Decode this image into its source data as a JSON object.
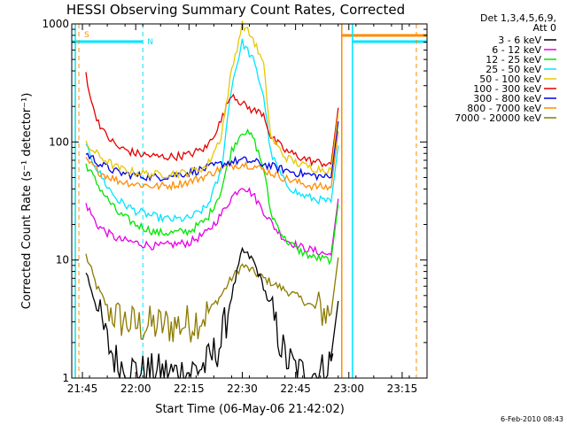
{
  "chart_data": {
    "type": "line",
    "title": "HESSI Observing Summary Count Rates, Corrected",
    "xlabel": "Start Time (06-May-06 21:42:02)",
    "ylabel": "Corrected Count Rate (s⁻¹ detector⁻¹)",
    "yscale": "log",
    "ylim": [
      1,
      1000
    ],
    "xlim": [
      "21:42",
      "23:22"
    ],
    "x_ticks": [
      "21:45",
      "22:00",
      "22:15",
      "22:30",
      "22:45",
      "23:00",
      "23:15"
    ],
    "y_ticks": [
      "1",
      "10",
      "100",
      "1000"
    ],
    "legend_header": [
      "Det 1,3,4,5,6,9,",
      "Att 0"
    ],
    "legend_position": "right",
    "footer": "6-Feb-2010 08:43",
    "annotations": [
      {
        "text": "S",
        "color": "#ff8c00"
      },
      {
        "text": "N",
        "color": "#00e5ff"
      }
    ],
    "series": [
      {
        "name": "3 - 6 keV",
        "color": "#000000",
        "points": [
          [
            "21:46",
            8
          ],
          [
            "21:49",
            4
          ],
          [
            "21:52",
            2
          ],
          [
            "21:55",
            1.3
          ],
          [
            "21:58",
            1.2
          ],
          [
            "22:02",
            1.1
          ],
          [
            "22:08",
            1.1
          ],
          [
            "22:14",
            1.1
          ],
          [
            "22:20",
            1.3
          ],
          [
            "22:24",
            2
          ],
          [
            "22:27",
            5
          ],
          [
            "22:30",
            12
          ],
          [
            "22:33",
            10
          ],
          [
            "22:36",
            6
          ],
          [
            "22:39",
            3
          ],
          [
            "22:42",
            1.5
          ],
          [
            "22:46",
            1.1
          ],
          [
            "22:52",
            1.1
          ],
          [
            "22:56",
            1.5
          ]
        ]
      },
      {
        "name": "6 - 12 keV",
        "color": "#e600e6",
        "points": [
          [
            "21:46",
            30
          ],
          [
            "21:49",
            20
          ],
          [
            "21:52",
            17
          ],
          [
            "21:55",
            15
          ],
          [
            "22:00",
            14
          ],
          [
            "22:06",
            13
          ],
          [
            "22:10",
            13.5
          ],
          [
            "22:15",
            14
          ],
          [
            "22:20",
            17
          ],
          [
            "22:24",
            24
          ],
          [
            "22:27",
            34
          ],
          [
            "22:30",
            43
          ],
          [
            "22:33",
            36
          ],
          [
            "22:36",
            26
          ],
          [
            "22:39",
            19
          ],
          [
            "22:42",
            15
          ],
          [
            "22:46",
            13
          ],
          [
            "22:50",
            12
          ],
          [
            "22:55",
            11
          ]
        ]
      },
      {
        "name": "12 - 25 keV",
        "color": "#00e600",
        "points": [
          [
            "21:46",
            65
          ],
          [
            "21:49",
            45
          ],
          [
            "21:52",
            33
          ],
          [
            "21:55",
            25
          ],
          [
            "22:00",
            20
          ],
          [
            "22:06",
            17
          ],
          [
            "22:10",
            17
          ],
          [
            "22:15",
            17.5
          ],
          [
            "22:20",
            22
          ],
          [
            "22:24",
            38
          ],
          [
            "22:27",
            85
          ],
          [
            "22:30",
            125
          ],
          [
            "22:33",
            110
          ],
          [
            "22:36",
            60
          ],
          [
            "22:38",
            25
          ],
          [
            "22:42",
            15
          ],
          [
            "22:46",
            12
          ],
          [
            "22:50",
            10.5
          ],
          [
            "22:55",
            10
          ]
        ]
      },
      {
        "name": "25 - 50 keV",
        "color": "#00e5ff",
        "points": [
          [
            "21:46",
            90
          ],
          [
            "21:49",
            60
          ],
          [
            "21:52",
            42
          ],
          [
            "21:55",
            32
          ],
          [
            "22:00",
            26
          ],
          [
            "22:06",
            23
          ],
          [
            "22:10",
            22
          ],
          [
            "22:15",
            22.5
          ],
          [
            "22:20",
            28
          ],
          [
            "22:24",
            55
          ],
          [
            "22:27",
            300
          ],
          [
            "22:30",
            700
          ],
          [
            "22:33",
            500
          ],
          [
            "22:36",
            250
          ],
          [
            "22:38",
            80
          ],
          [
            "22:42",
            45
          ],
          [
            "22:46",
            36
          ],
          [
            "22:50",
            33
          ],
          [
            "22:55",
            31
          ]
        ]
      },
      {
        "name": "50 - 100 keV",
        "color": "#e6c800",
        "points": [
          [
            "21:46",
            95
          ],
          [
            "21:50",
            75
          ],
          [
            "21:55",
            60
          ],
          [
            "22:00",
            55
          ],
          [
            "22:06",
            53
          ],
          [
            "22:10",
            54
          ],
          [
            "22:15",
            55
          ],
          [
            "22:20",
            62
          ],
          [
            "22:24",
            110
          ],
          [
            "22:27",
            400
          ],
          [
            "22:30",
            1000
          ],
          [
            "22:33",
            750
          ],
          [
            "22:36",
            450
          ],
          [
            "22:38",
            110
          ],
          [
            "22:42",
            75
          ],
          [
            "22:46",
            65
          ],
          [
            "22:50",
            60
          ],
          [
            "22:55",
            58
          ]
        ]
      },
      {
        "name": "100 - 300 keV",
        "color": "#e60000",
        "points": [
          [
            "21:46",
            380
          ],
          [
            "21:48",
            190
          ],
          [
            "21:51",
            120
          ],
          [
            "21:55",
            90
          ],
          [
            "22:00",
            80
          ],
          [
            "22:06",
            75
          ],
          [
            "22:10",
            75
          ],
          [
            "22:15",
            78
          ],
          [
            "22:20",
            90
          ],
          [
            "22:24",
            150
          ],
          [
            "22:27",
            260
          ],
          [
            "22:30",
            210
          ],
          [
            "22:33",
            185
          ],
          [
            "22:36",
            175
          ],
          [
            "22:38",
            110
          ],
          [
            "22:42",
            85
          ],
          [
            "22:46",
            75
          ],
          [
            "22:50",
            68
          ],
          [
            "22:55",
            65
          ]
        ]
      },
      {
        "name": "300 - 800 keV",
        "color": "#0000e6",
        "points": [
          [
            "21:46",
            80
          ],
          [
            "21:50",
            65
          ],
          [
            "21:55",
            55
          ],
          [
            "22:00",
            52
          ],
          [
            "22:06",
            50
          ],
          [
            "22:10",
            52
          ],
          [
            "22:15",
            55
          ],
          [
            "22:20",
            60
          ],
          [
            "22:24",
            65
          ],
          [
            "22:27",
            68
          ],
          [
            "22:30",
            70
          ],
          [
            "22:33",
            68
          ],
          [
            "22:36",
            65
          ],
          [
            "22:40",
            60
          ],
          [
            "22:45",
            55
          ],
          [
            "22:50",
            52
          ],
          [
            "22:55",
            50
          ]
        ]
      },
      {
        "name": "800 - 7000 keV",
        "color": "#ff8c00",
        "points": [
          [
            "21:46",
            70
          ],
          [
            "21:50",
            55
          ],
          [
            "21:55",
            47
          ],
          [
            "22:00",
            44
          ],
          [
            "22:06",
            42
          ],
          [
            "22:10",
            43
          ],
          [
            "22:15",
            46
          ],
          [
            "22:20",
            52
          ],
          [
            "22:24",
            60
          ],
          [
            "22:27",
            63
          ],
          [
            "22:30",
            65
          ],
          [
            "22:33",
            63
          ],
          [
            "22:36",
            58
          ],
          [
            "22:40",
            52
          ],
          [
            "22:45",
            46
          ],
          [
            "22:50",
            42
          ],
          [
            "22:55",
            41
          ]
        ]
      },
      {
        "name": "7000 - 20000 keV",
        "color": "#8c7a00",
        "points": [
          [
            "21:46",
            11
          ],
          [
            "21:49",
            6
          ],
          [
            "21:52",
            4
          ],
          [
            "21:55",
            3.2
          ],
          [
            "22:00",
            2.8
          ],
          [
            "22:06",
            2.8
          ],
          [
            "22:10",
            2.8
          ],
          [
            "22:15",
            2.9
          ],
          [
            "22:20",
            3.5
          ],
          [
            "22:24",
            5
          ],
          [
            "22:27",
            7
          ],
          [
            "22:30",
            9
          ],
          [
            "22:33",
            8
          ],
          [
            "22:36",
            7
          ],
          [
            "22:40",
            6
          ],
          [
            "22:45",
            5
          ],
          [
            "22:50",
            4
          ],
          [
            "22:55",
            3.5
          ]
        ]
      }
    ]
  }
}
